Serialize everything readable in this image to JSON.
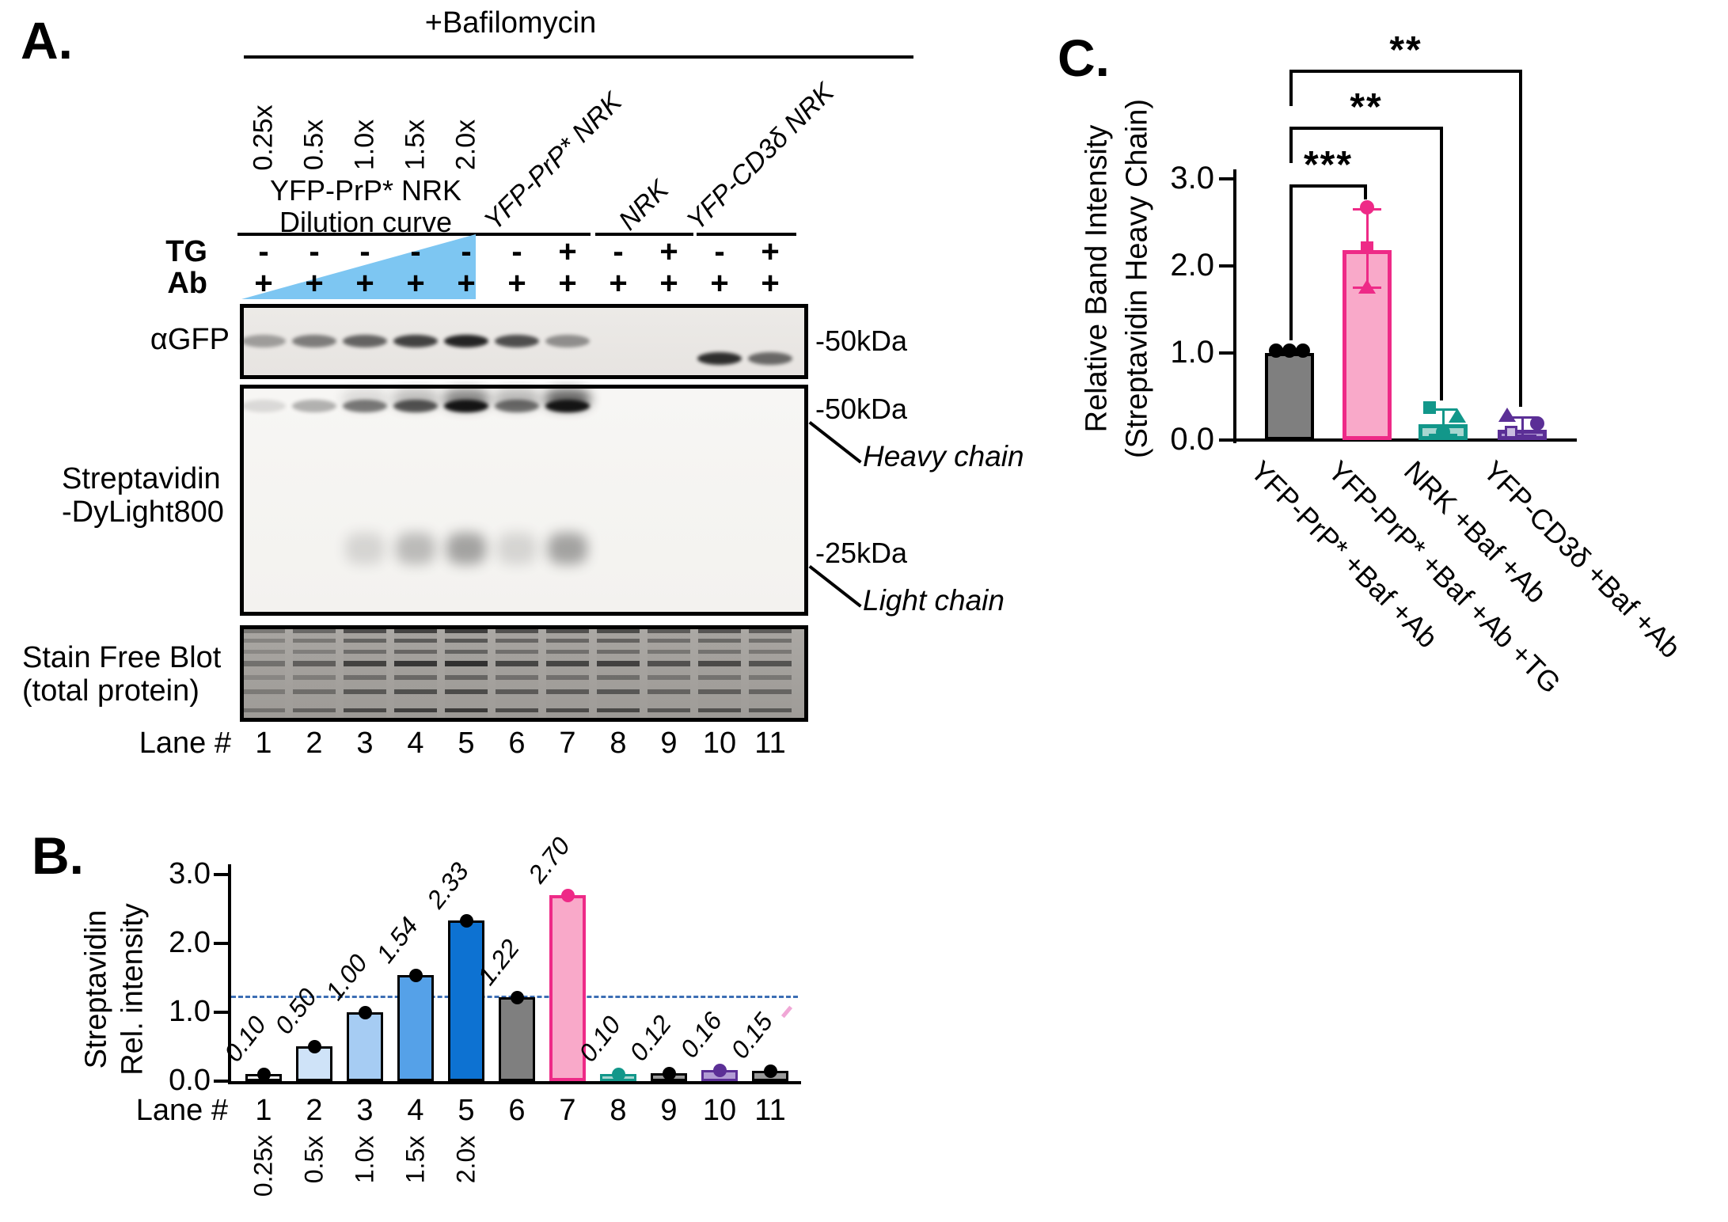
{
  "figure": {
    "panelA": {
      "label": "A.",
      "header": "+Bafilomycin",
      "dilution_labels": [
        "0.25x",
        "0.5x",
        "1.0x",
        "1.5x",
        "2.0x"
      ],
      "dilution_title1": "YFP-PrP* NRK",
      "dilution_title2": "Dilution curve",
      "group_labels": [
        "YFP-PrP* NRK",
        "NRK",
        "YFP-CD3δ NRK"
      ],
      "tg_label": "TG",
      "tg_values": [
        "-",
        "-",
        "-",
        "-",
        "-",
        "-",
        "+",
        "-",
        "+",
        "-",
        "+"
      ],
      "ab_label": "Ab",
      "ab_values": [
        "+",
        "+",
        "+",
        "+",
        "+",
        "+",
        "+",
        "+",
        "+",
        "+",
        "+"
      ],
      "blot_agfp": {
        "label": "αGFP",
        "marker": "-50kDa",
        "bands": [
          0.35,
          0.5,
          0.62,
          0.78,
          0.92,
          0.72,
          0.42,
          0,
          0,
          0,
          0
        ],
        "bands_low": [
          0,
          0,
          0,
          0,
          0,
          0,
          0,
          0,
          0,
          0.88,
          0.6
        ]
      },
      "blot_strep": {
        "label1": "Streptavidin",
        "label2": "-DyLight800",
        "marker_heavy": "-50kDa",
        "heavy_annotation": "Heavy chain",
        "marker_light": "-25kDa",
        "light_annotation": "Light chain",
        "heavy_bands": [
          0.12,
          0.3,
          0.52,
          0.68,
          1,
          0.55,
          1,
          0,
          0,
          0,
          0
        ],
        "heavy_smear": [
          0,
          0,
          0.12,
          0.25,
          0.5,
          0.28,
          0.65,
          0,
          0,
          0,
          0
        ],
        "light_bands": [
          0,
          0,
          0.15,
          0.28,
          0.4,
          0.15,
          0.4,
          0,
          0,
          0,
          0
        ]
      },
      "blot_stainfree": {
        "label1": "Stain Free Blot",
        "label2": "(total protein)",
        "lane_intensity": [
          0.45,
          0.6,
          0.85,
          0.95,
          1,
          0.82,
          0.82,
          0.86,
          0.72,
          0.78,
          0.7
        ]
      },
      "lane_label": "Lane #",
      "lane_numbers": [
        "1",
        "2",
        "3",
        "4",
        "5",
        "6",
        "7",
        "8",
        "9",
        "10",
        "11"
      ]
    },
    "panelB": {
      "label": "B.",
      "ylabel1": "Streptavidin",
      "ylabel2": "Rel. intensity",
      "xlabel": "Lane #"
    },
    "panelC": {
      "label": "C.",
      "ylabel1": "Relative Band Intensity",
      "ylabel2": "(Streptavidin Heavy Chain)"
    },
    "colors": {
      "dilution_gradient_triangle": "#7dc6f2",
      "reference_dash": "#3c6eb4",
      "pink": "#ee2a87",
      "pink_fill": "#f9a9c9",
      "teal": "#12978a",
      "teal_fill": "#a7d6d0",
      "purple": "#5b2f96",
      "purple_fill": "#b19bd4",
      "gray": "#7f7f7f"
    }
  },
  "chart_data": [
    {
      "id": "panelB",
      "type": "bar",
      "title": "",
      "ylabel": "Streptavidin Rel. intensity",
      "xlabel": "Lane #",
      "categories": [
        "1",
        "2",
        "3",
        "4",
        "5",
        "6",
        "7",
        "8",
        "9",
        "10",
        "11"
      ],
      "values": [
        0.1,
        0.5,
        1.0,
        1.54,
        2.33,
        1.22,
        2.7,
        0.1,
        0.12,
        0.16,
        0.15
      ],
      "value_labels": [
        "0.10",
        "0.50",
        "1.00",
        "1.54",
        "2.33",
        "1.22",
        "2.70",
        "0.10",
        "0.12",
        "0.16",
        "0.15"
      ],
      "dilution_sublabels": [
        "0.25x",
        "0.5x",
        "1.0x",
        "1.5x",
        "2.0x"
      ],
      "ylim": [
        0,
        3.0
      ],
      "yticks": [
        "0.0",
        "1.0",
        "2.0",
        "3.0"
      ],
      "grid": false,
      "reference_line": 1.22,
      "bar_fill": [
        "#ffffff",
        "#cfe3f8",
        "#a6ccf3",
        "#55a1e8",
        "#0d72d2",
        "#7f7f7f",
        "#f9a9c9",
        "#a7d6d0",
        "#9a9a9a",
        "#b19bd4",
        "#9a9a9a"
      ],
      "bar_border": [
        "#000000",
        "#000000",
        "#000000",
        "#000000",
        "#000000",
        "#000000",
        "#ee2a87",
        "#12978a",
        "#000000",
        "#5b2f96",
        "#000000"
      ],
      "dot_color": [
        "#000000",
        "#000000",
        "#000000",
        "#000000",
        "#000000",
        "#000000",
        "#ee2a87",
        "#12978a",
        "#000000",
        "#5b2f96",
        "#000000"
      ]
    },
    {
      "id": "panelC",
      "type": "bar",
      "title": "",
      "ylabel": "Relative Band Intensity (Streptavidin Heavy Chain)",
      "xlabel": "",
      "categories": [
        "YFP-PrP* +Baf +Ab",
        "YFP-PrP* +Baf +Ab +TG",
        "NRK +Baf +Ab",
        "YFP-CD3δ +Baf +Ab"
      ],
      "values": [
        1.0,
        2.18,
        0.18,
        0.12
      ],
      "ylim": [
        0,
        3.0
      ],
      "yticks": [
        "0.0",
        "1.0",
        "2.0",
        "3.0"
      ],
      "grid": false,
      "bar_fill": [
        "#7f7f7f",
        "#f9a9c9",
        "#a7d6d0",
        "#b19bd4"
      ],
      "bar_border": [
        "#000000",
        "#ee2a87",
        "#12978a",
        "#5b2f96"
      ],
      "point_color": [
        "#000000",
        "#ee2a87",
        "#12978a",
        "#5b2f96"
      ],
      "error_bars": [
        null,
        {
          "low": 1.75,
          "high": 2.65
        },
        {
          "low": 0.06,
          "high": 0.35
        },
        {
          "low": 0.05,
          "high": 0.26
        }
      ],
      "points": [
        [
          {
            "v": 1.0,
            "dx": -17,
            "shape": "circle"
          },
          {
            "v": 1.0,
            "dx": 0,
            "shape": "circle"
          },
          {
            "v": 1.0,
            "dx": 17,
            "shape": "circle"
          }
        ],
        [
          {
            "v": 2.65,
            "dx": 0,
            "shape": "circle"
          },
          {
            "v": 2.18,
            "dx": 0,
            "shape": "square"
          },
          {
            "v": 1.75,
            "dx": 0,
            "shape": "triangle"
          }
        ],
        [
          {
            "v": 0.35,
            "dx": -17,
            "shape": "square"
          },
          {
            "v": 0.26,
            "dx": 18,
            "shape": "triangle"
          },
          {
            "v": 0.06,
            "dx": 0,
            "shape": "circle"
          }
        ],
        [
          {
            "v": 0.27,
            "dx": -19,
            "shape": "triangle"
          },
          {
            "v": 0.16,
            "dx": 19,
            "shape": "circle"
          },
          {
            "v": 0.06,
            "dx": -14,
            "shape": "square",
            "light": true
          }
        ]
      ],
      "significance": [
        {
          "pair": [
            1,
            2
          ],
          "label": "***"
        },
        {
          "pair": [
            1,
            3
          ],
          "label": "**"
        },
        {
          "pair": [
            1,
            4
          ],
          "label": "**"
        }
      ]
    }
  ]
}
